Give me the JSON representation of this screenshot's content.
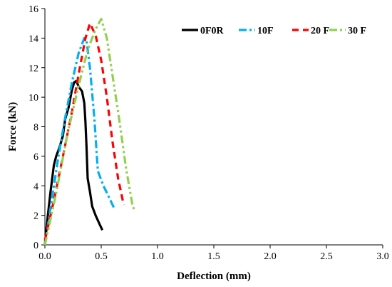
{
  "chart_data": {
    "type": "line",
    "title": "",
    "xlabel": "Deflection (mm)",
    "ylabel": "Force (kN)",
    "xlim": [
      0,
      3.0
    ],
    "ylim": [
      0,
      16
    ],
    "x_ticks": [
      "0.0",
      "0.5",
      "1.0",
      "1.5",
      "2.0",
      "2.5",
      "3.0"
    ],
    "y_ticks": [
      "0",
      "2",
      "4",
      "6",
      "8",
      "10",
      "12",
      "14",
      "16"
    ],
    "grid": false,
    "legend_position": "top-right",
    "series": [
      {
        "name": "0F0R",
        "color": "#000000",
        "dash": "solid",
        "points": [
          [
            0.0,
            0.0
          ],
          [
            0.02,
            1.6
          ],
          [
            0.05,
            3.6
          ],
          [
            0.08,
            5.4
          ],
          [
            0.1,
            6.0
          ],
          [
            0.13,
            6.6
          ],
          [
            0.16,
            7.4
          ],
          [
            0.18,
            8.5
          ],
          [
            0.21,
            9.3
          ],
          [
            0.24,
            10.5
          ],
          [
            0.26,
            11.0
          ],
          [
            0.28,
            11.1
          ],
          [
            0.3,
            10.7
          ],
          [
            0.33,
            10.4
          ],
          [
            0.35,
            9.6
          ],
          [
            0.36,
            8.3
          ],
          [
            0.37,
            6.5
          ],
          [
            0.38,
            4.5
          ],
          [
            0.4,
            3.6
          ],
          [
            0.42,
            2.6
          ],
          [
            0.45,
            2.0
          ],
          [
            0.48,
            1.5
          ],
          [
            0.51,
            1.0
          ]
        ]
      },
      {
        "name": "10F",
        "color": "#00B0F0",
        "dash": "dashdot",
        "points": [
          [
            0.0,
            0.0
          ],
          [
            0.06,
            3.0
          ],
          [
            0.12,
            6.0
          ],
          [
            0.18,
            8.6
          ],
          [
            0.24,
            11.0
          ],
          [
            0.3,
            13.0
          ],
          [
            0.35,
            14.0
          ],
          [
            0.37,
            13.8
          ],
          [
            0.4,
            12.0
          ],
          [
            0.44,
            8.5
          ],
          [
            0.47,
            5.0
          ],
          [
            0.52,
            4.0
          ],
          [
            0.57,
            3.2
          ],
          [
            0.62,
            2.4
          ]
        ]
      },
      {
        "name": "20 F",
        "color": "#FF0000",
        "dash": "dash",
        "points": [
          [
            0.0,
            0.3
          ],
          [
            0.08,
            3.0
          ],
          [
            0.16,
            6.0
          ],
          [
            0.24,
            9.0
          ],
          [
            0.31,
            12.0
          ],
          [
            0.36,
            14.0
          ],
          [
            0.4,
            15.0
          ],
          [
            0.45,
            14.2
          ],
          [
            0.5,
            12.5
          ],
          [
            0.55,
            10.0
          ],
          [
            0.6,
            7.0
          ],
          [
            0.65,
            4.5
          ],
          [
            0.7,
            2.7
          ]
        ]
      },
      {
        "name": "30 F",
        "color": "#92D050",
        "dash": "dashdotdot",
        "points": [
          [
            0.0,
            0.0
          ],
          [
            0.1,
            3.5
          ],
          [
            0.2,
            7.5
          ],
          [
            0.3,
            10.8
          ],
          [
            0.38,
            13.2
          ],
          [
            0.45,
            14.6
          ],
          [
            0.5,
            15.3
          ],
          [
            0.55,
            14.0
          ],
          [
            0.6,
            11.5
          ],
          [
            0.66,
            8.5
          ],
          [
            0.72,
            5.2
          ],
          [
            0.78,
            2.6
          ],
          [
            0.8,
            2.3
          ]
        ]
      }
    ]
  }
}
